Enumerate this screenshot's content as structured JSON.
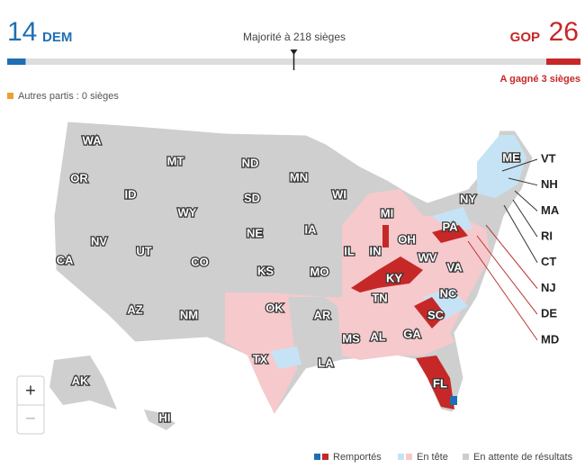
{
  "header": {
    "dem": {
      "seats": 14,
      "party": "DEM"
    },
    "gop": {
      "party": "GOP",
      "seats": 26
    },
    "majority": {
      "value": 218,
      "label": "Majorité à 218 sièges"
    },
    "gop_won": "A gagné 3 sièges",
    "others": "Autres partis : 0 sièges"
  },
  "map": {
    "states": [
      "WA",
      "OR",
      "MT",
      "ND",
      "MN",
      "ID",
      "WY",
      "SD",
      "WI",
      "MI",
      "NY",
      "ME",
      "NV",
      "UT",
      "NE",
      "IA",
      "IL",
      "IN",
      "OH",
      "PA",
      "CA",
      "CO",
      "KS",
      "MO",
      "KY",
      "WV",
      "VA",
      "TN",
      "NC",
      "AZ",
      "NM",
      "OK",
      "AR",
      "SC",
      "MS",
      "AL",
      "GA",
      "TX",
      "LA",
      "FL",
      "AK",
      "HI"
    ],
    "callouts": [
      "VT",
      "NH",
      "MA",
      "RI",
      "CT",
      "NJ",
      "DE",
      "MD"
    ]
  },
  "zoom": [
    "+",
    "−"
  ],
  "legend": [
    "Remportés",
    "En tête",
    "En attente de résultats"
  ]
}
